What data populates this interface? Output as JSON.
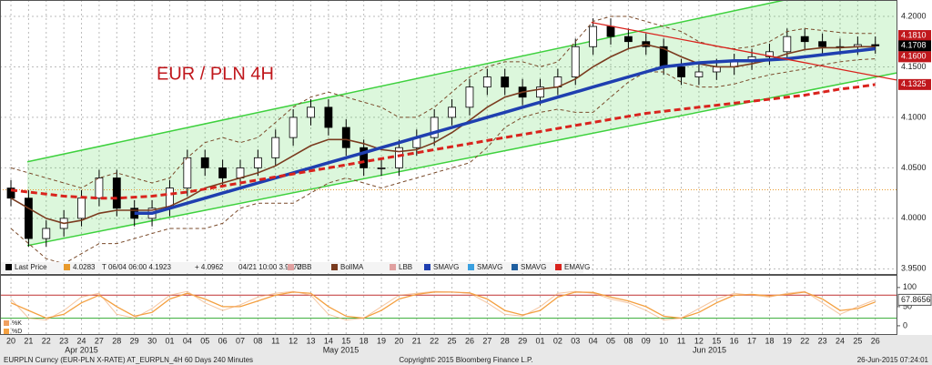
{
  "chart_data": {
    "type": "candlestick",
    "title": "EUR / PLN 4H",
    "categories": [
      "20",
      "21",
      "22",
      "23",
      "24",
      "27",
      "28",
      "29",
      "30",
      "01",
      "04",
      "05",
      "06",
      "07",
      "08",
      "11",
      "12",
      "13",
      "14",
      "15",
      "18",
      "19",
      "20",
      "21",
      "22",
      "25",
      "26",
      "27",
      "28",
      "29",
      "01",
      "02",
      "03",
      "04",
      "05",
      "08",
      "09",
      "10",
      "11",
      "12",
      "15",
      "16",
      "17",
      "18",
      "19",
      "22",
      "23",
      "24",
      "25",
      "26"
    ],
    "months": [
      {
        "label": "Apr 2015",
        "at": 4
      },
      {
        "label": "May 2015",
        "at": 18.7
      },
      {
        "label": "Jun 2015",
        "at": 39.6
      }
    ],
    "open": [
      4.03,
      4.02,
      3.98,
      3.99,
      4.0,
      4.02,
      4.04,
      4.01,
      4.0,
      4.01,
      4.03,
      4.06,
      4.05,
      4.04,
      4.05,
      4.06,
      4.08,
      4.1,
      4.11,
      4.09,
      4.07,
      4.05,
      4.05,
      4.07,
      4.08,
      4.1,
      4.11,
      4.13,
      4.14,
      4.13,
      4.12,
      4.13,
      4.14,
      4.17,
      4.19,
      4.18,
      4.175,
      4.17,
      4.15,
      4.14,
      4.145,
      4.15,
      4.155,
      4.16,
      4.165,
      4.18,
      4.175,
      4.17,
      4.17,
      4.172
    ],
    "high": [
      4.038,
      4.028,
      3.998,
      4.008,
      4.028,
      4.048,
      4.048,
      4.018,
      4.018,
      4.038,
      4.068,
      4.068,
      4.058,
      4.058,
      4.068,
      4.088,
      4.108,
      4.118,
      4.118,
      4.098,
      4.078,
      4.058,
      4.078,
      4.088,
      4.108,
      4.118,
      4.138,
      4.148,
      4.148,
      4.138,
      4.138,
      4.148,
      4.178,
      4.198,
      4.198,
      4.188,
      4.183,
      4.178,
      4.158,
      4.153,
      4.158,
      4.163,
      4.168,
      4.173,
      4.188,
      4.188,
      4.183,
      4.178,
      4.18,
      4.18
    ],
    "low": [
      4.012,
      3.972,
      3.972,
      3.982,
      3.992,
      4.012,
      4.002,
      3.992,
      3.992,
      4.002,
      4.022,
      4.042,
      4.032,
      4.032,
      4.042,
      4.052,
      4.072,
      4.092,
      4.082,
      4.062,
      4.042,
      4.042,
      4.042,
      4.062,
      4.072,
      4.092,
      4.102,
      4.122,
      4.122,
      4.112,
      4.112,
      4.122,
      4.132,
      4.162,
      4.172,
      4.167,
      4.162,
      4.142,
      4.132,
      4.132,
      4.137,
      4.142,
      4.147,
      4.152,
      4.157,
      4.167,
      4.162,
      4.162,
      4.162,
      4.163
    ],
    "close": [
      4.02,
      3.98,
      3.99,
      4.0,
      4.02,
      4.04,
      4.01,
      4.0,
      4.01,
      4.03,
      4.06,
      4.05,
      4.04,
      4.05,
      4.06,
      4.08,
      4.1,
      4.11,
      4.09,
      4.07,
      4.05,
      4.05,
      4.07,
      4.08,
      4.1,
      4.11,
      4.13,
      4.14,
      4.13,
      4.12,
      4.13,
      4.14,
      4.17,
      4.19,
      4.18,
      4.175,
      4.17,
      4.15,
      4.14,
      4.145,
      4.15,
      4.155,
      4.16,
      4.165,
      4.18,
      4.175,
      4.17,
      4.17,
      4.172,
      4.1708
    ],
    "series": [
      {
        "color": "#7a4a2a",
        "dash": "4,3",
        "width": 1,
        "values": [
          4.05,
          4.045,
          4.04,
          4.035,
          4.03,
          4.04,
          4.045,
          4.04,
          4.035,
          4.04,
          4.06,
          4.075,
          4.08,
          4.075,
          4.08,
          4.095,
          4.11,
          4.12,
          4.125,
          4.12,
          4.115,
          4.11,
          4.1,
          4.1,
          4.11,
          4.125,
          4.14,
          4.15,
          4.155,
          4.155,
          4.15,
          4.155,
          4.175,
          4.195,
          4.2,
          4.2,
          4.195,
          4.19,
          4.185,
          4.175,
          4.17,
          4.168,
          4.17,
          4.175,
          4.185,
          4.188,
          4.186,
          4.184,
          4.183,
          4.183
        ]
      },
      {
        "color": "#7a3b1f",
        "width": 1.6,
        "values": [
          4.02,
          4.01,
          4.0,
          3.995,
          3.998,
          4.005,
          4.008,
          4.008,
          4.008,
          4.012,
          4.02,
          4.03,
          4.035,
          4.04,
          4.045,
          4.052,
          4.062,
          4.072,
          4.078,
          4.078,
          4.074,
          4.068,
          4.066,
          4.068,
          4.075,
          4.085,
          4.097,
          4.11,
          4.12,
          4.125,
          4.128,
          4.13,
          4.138,
          4.15,
          4.16,
          4.168,
          4.172,
          4.168,
          4.16,
          4.153,
          4.15,
          4.15,
          4.153,
          4.157,
          4.163,
          4.167,
          4.169,
          4.169,
          4.17,
          4.17
        ]
      },
      {
        "color": "#7a4a2a",
        "dash": "4,3",
        "width": 1,
        "values": [
          3.99,
          3.975,
          3.96,
          3.955,
          3.965,
          3.975,
          3.975,
          3.98,
          3.985,
          3.99,
          3.99,
          3.99,
          3.995,
          4.01,
          4.015,
          4.015,
          4.015,
          4.025,
          4.035,
          4.04,
          4.035,
          4.03,
          4.035,
          4.04,
          4.045,
          4.05,
          4.055,
          4.07,
          4.09,
          4.1,
          4.105,
          4.108,
          4.105,
          4.105,
          4.12,
          4.135,
          4.145,
          4.145,
          4.135,
          4.13,
          4.13,
          4.133,
          4.138,
          4.142,
          4.145,
          4.148,
          4.152,
          4.155,
          4.157,
          4.158
        ]
      },
      {
        "color": "#1f3fb0",
        "width": 3.5,
        "values": [
          null,
          null,
          null,
          null,
          null,
          null,
          null,
          4.005,
          4.005,
          4.01,
          4.015,
          4.02,
          4.025,
          4.03,
          4.035,
          4.04,
          4.045,
          4.05,
          4.055,
          4.06,
          4.065,
          4.07,
          4.075,
          4.08,
          4.085,
          4.09,
          4.095,
          4.1,
          4.105,
          4.11,
          4.115,
          4.12,
          4.125,
          4.13,
          4.135,
          4.14,
          4.145,
          4.15,
          4.152,
          4.154,
          4.155,
          4.156,
          4.156,
          4.157,
          4.158,
          4.16,
          4.162,
          4.164,
          4.166,
          4.168
        ]
      },
      {
        "color": "#d9231d",
        "dash": "7,4",
        "width": 3,
        "values": [
          4.028,
          4.026,
          4.024,
          4.022,
          4.021,
          4.02,
          4.02,
          4.021,
          4.022,
          4.024,
          4.026,
          4.029,
          4.032,
          4.035,
          4.038,
          4.041,
          4.044,
          4.047,
          4.05,
          4.053,
          4.056,
          4.059,
          4.062,
          4.065,
          4.068,
          4.071,
          4.074,
          4.077,
          4.08,
          4.083,
          4.086,
          4.089,
          4.092,
          4.095,
          4.098,
          4.101,
          4.104,
          4.106,
          4.108,
          4.11,
          4.112,
          4.114,
          4.116,
          4.118,
          4.12,
          4.122,
          4.125,
          4.128,
          4.13,
          4.1325
        ]
      }
    ],
    "channel": {
      "color": "#3ed13e",
      "upper": {
        "x": [
          0.93,
          43.8
        ],
        "values": [
          4.056,
          4.216
        ]
      },
      "lower": {
        "x": [
          0.93,
          50.2
        ],
        "values": [
          3.973,
          4.144
        ]
      }
    },
    "trendline": {
      "color": "#d9231d",
      "x": [
        32.9,
        50.2
      ],
      "values": [
        4.194,
        4.137
      ]
    },
    "last_price_level": {
      "value": 4.0283,
      "color": "#e89a2c"
    },
    "xlim": [
      -0.62,
      50.2
    ],
    "ylim": [
      3.944,
      4.2162
    ],
    "yticks": [
      {
        "value": 4.2,
        "label": "4.2000"
      },
      {
        "value": 4.15,
        "label": "4.1500"
      },
      {
        "value": 4.1,
        "label": "4.1000"
      },
      {
        "value": 4.05,
        "label": "4.0500"
      },
      {
        "value": 4.0,
        "label": "4.0000"
      },
      {
        "value": 3.95,
        "label": "3.9500"
      }
    ],
    "price_tags": [
      {
        "value": 4.181,
        "label": "4.1810",
        "color": "#c0171c"
      },
      {
        "value": 4.1708,
        "label": "4.1708",
        "color": "#000000"
      },
      {
        "value": 4.16,
        "label": "4.1600",
        "color": "#c0171c"
      },
      {
        "value": 4.1325,
        "label": "4.1325",
        "color": "#c0171c"
      }
    ],
    "legend": [
      {
        "label": "Last Price",
        "color": "#000000"
      },
      {
        "label": "4.0283",
        "color": "#e89a2c"
      },
      {
        "label": "T 06/04 06:00 4.1923"
      },
      {
        "label": "+ 4.0962"
      },
      {
        "label": "04/21 10:00 3.9672"
      },
      {
        "label": "UBB",
        "color": "#e0a0a0"
      },
      {
        "label": "BollMA",
        "color": "#7a3b1f"
      },
      {
        "label": "LBB",
        "color": "#e0a0a0"
      },
      {
        "label": "SMAVG",
        "color": "#1f3fb0"
      },
      {
        "label": "SMAVG",
        "color": "#3aa0e0"
      },
      {
        "label": "SMAVG",
        "color": "#1f5fa0"
      },
      {
        "label": "EMAVG",
        "color": "#d9231d"
      }
    ],
    "stochastic": {
      "k": {
        "name": "%K",
        "color": "#f0a060",
        "values": [
          70,
          20,
          15,
          40,
          75,
          85,
          30,
          20,
          45,
          80,
          90,
          60,
          40,
          55,
          75,
          85,
          90,
          80,
          30,
          15,
          20,
          50,
          80,
          85,
          90,
          88,
          85,
          60,
          30,
          25,
          50,
          85,
          90,
          85,
          70,
          60,
          40,
          15,
          20,
          45,
          70,
          85,
          80,
          75,
          85,
          90,
          60,
          30,
          50,
          67.8656
        ]
      },
      "d": {
        "name": "%D",
        "color": "#f4a040",
        "values": [
          60,
          40,
          20,
          30,
          60,
          80,
          50,
          25,
          35,
          70,
          85,
          70,
          50,
          50,
          65,
          80,
          88,
          85,
          50,
          25,
          20,
          40,
          70,
          82,
          88,
          88,
          86,
          70,
          40,
          28,
          40,
          75,
          88,
          87,
          75,
          65,
          50,
          25,
          20,
          35,
          60,
          80,
          82,
          78,
          82,
          88,
          70,
          40,
          45,
          62
        ]
      },
      "levels": [
        {
          "value": 80,
          "color": "#c03030"
        },
        {
          "value": 20,
          "color": "#40b040"
        }
      ],
      "ylim": [
        -24,
        133
      ],
      "yticks": [
        100,
        50,
        0
      ],
      "tag": {
        "value": 67.8656,
        "label": "67.8656"
      }
    },
    "footer": {
      "left": "EURPLN Curncy (EUR-PLN X-RATE) AT_EURPLN_4H 60 Days 240 Minutes",
      "center": "Copyright© 2015 Bloomberg Finance L.P.",
      "right": "26-Jun-2015 07:24:01"
    }
  }
}
